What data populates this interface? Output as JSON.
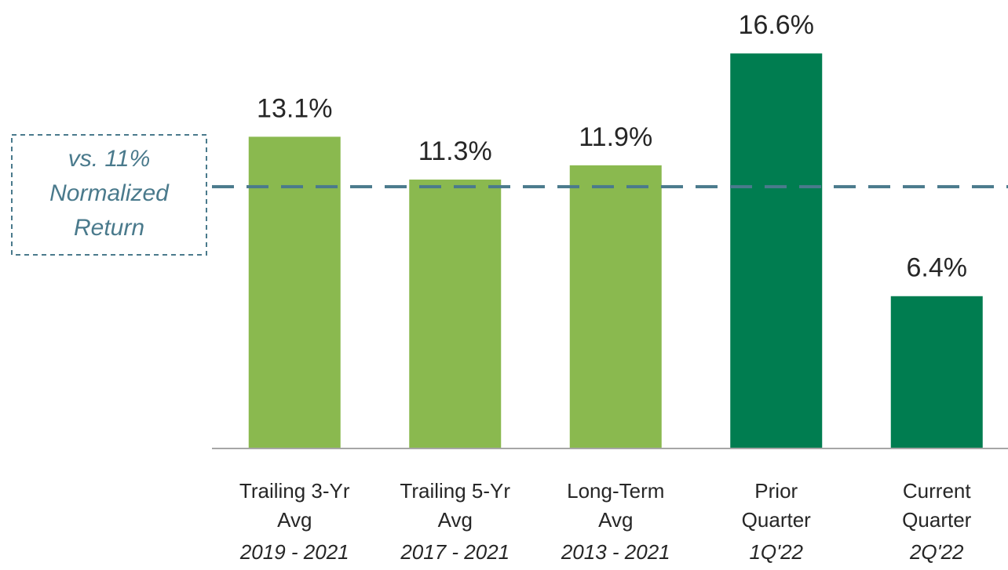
{
  "chart_data": {
    "type": "bar",
    "categories": [
      [
        "Trailing 3-Yr",
        "Avg"
      ],
      [
        "Trailing 5-Yr",
        "Avg"
      ],
      [
        "Long-Term",
        "Avg"
      ],
      [
        "Prior",
        "Quarter"
      ],
      [
        "Current",
        "Quarter"
      ]
    ],
    "periods": [
      "2019 - 2021",
      "2017 - 2021",
      "2013 - 2021",
      "1Q'22",
      "2Q'22"
    ],
    "values": [
      13.1,
      11.3,
      11.9,
      16.6,
      6.4
    ],
    "value_labels": [
      "13.1%",
      "11.3%",
      "11.9%",
      "16.6%",
      "6.4%"
    ],
    "colors": [
      "#8ab94f",
      "#8ab94f",
      "#8ab94f",
      "#007d50",
      "#007d50"
    ],
    "ylim": [
      0,
      18
    ],
    "reference_line": {
      "value": 11,
      "color": "#4a7a8c",
      "label": [
        "vs. 11%",
        "Normalized",
        "Return"
      ]
    }
  }
}
